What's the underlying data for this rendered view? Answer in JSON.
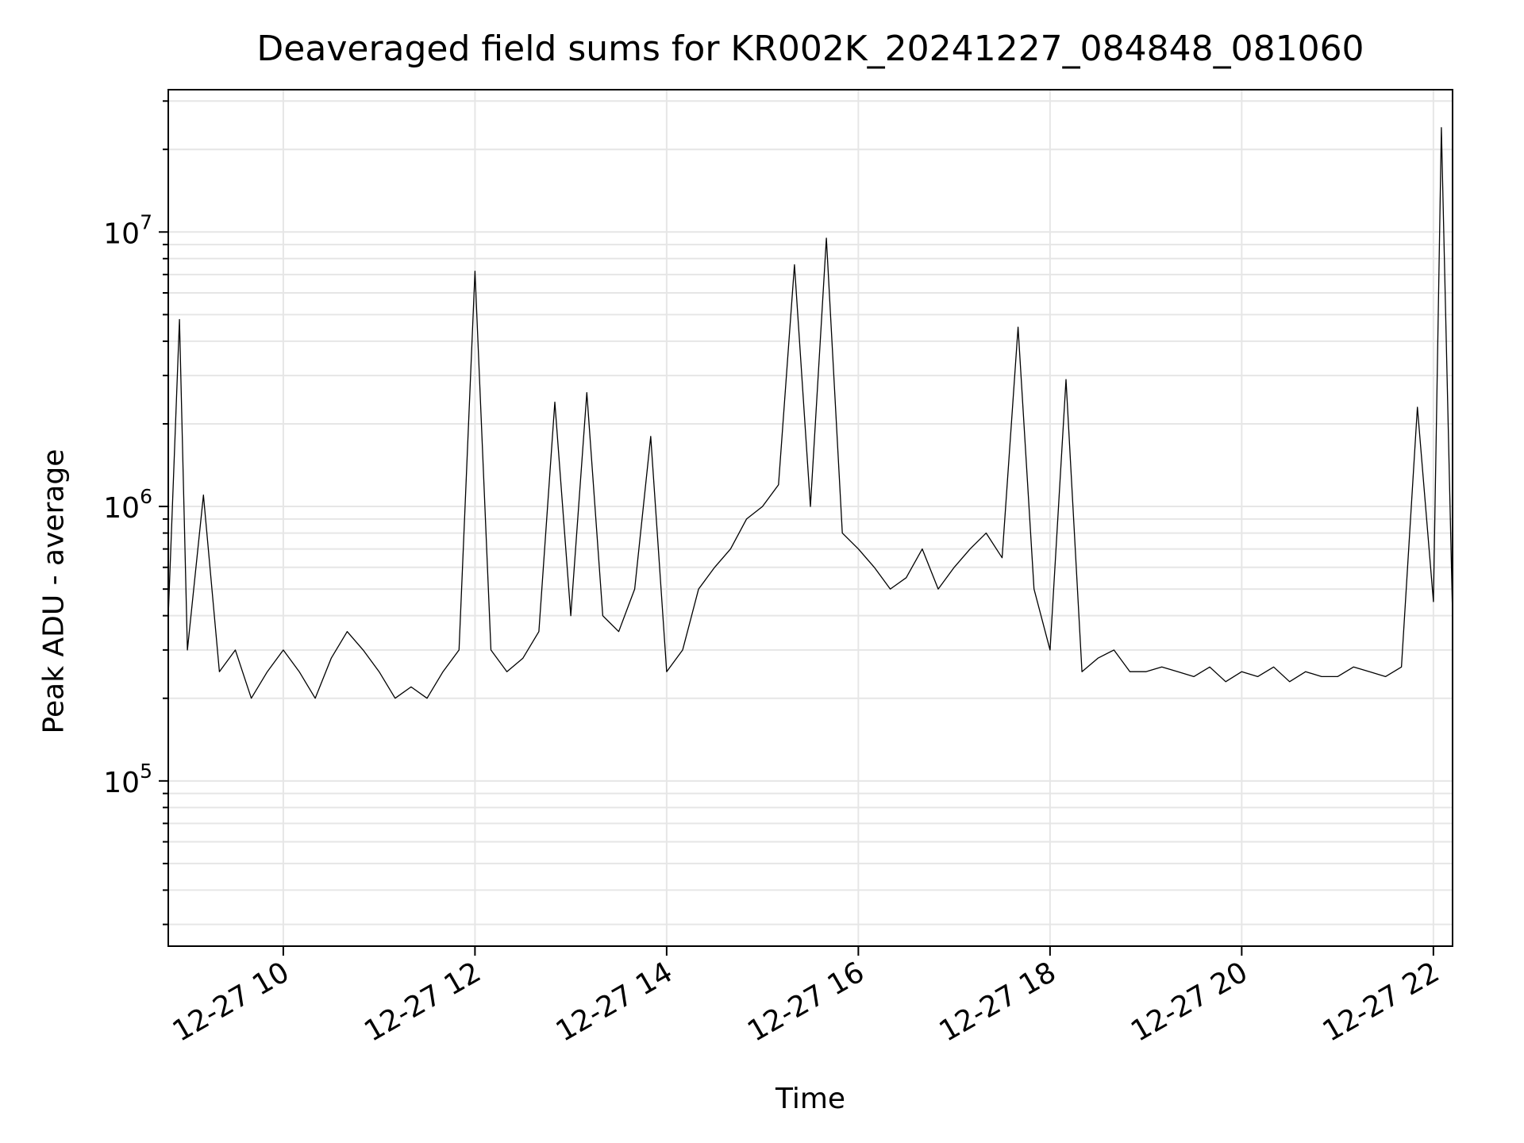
{
  "chart_data": {
    "type": "line",
    "title": "Deaveraged field sums for KR002K_20241227_084848_081060",
    "xlabel": "Time",
    "ylabel": "Peak ADU - average",
    "y_scale": "log",
    "ylim": [
      25000,
      33000000
    ],
    "xlim": [
      "2024-12-27 08:48",
      "2024-12-27 22:12"
    ],
    "x_ticks": [
      "2024-12-27 10:00",
      "2024-12-27 12:00",
      "2024-12-27 14:00",
      "2024-12-27 16:00",
      "2024-12-27 18:00",
      "2024-12-27 20:00",
      "2024-12-27 22:00"
    ],
    "x_tick_labels": [
      "12-27 10",
      "12-27 12",
      "12-27 14",
      "12-27 16",
      "12-27 18",
      "12-27 20",
      "12-27 22"
    ],
    "y_ticks": [
      100000,
      1000000,
      10000000
    ],
    "y_tick_labels": [
      {
        "base": "10",
        "exp": "5"
      },
      {
        "base": "10",
        "exp": "6"
      },
      {
        "base": "10",
        "exp": "7"
      }
    ],
    "grid": true,
    "line_color": "#000000",
    "series": [
      {
        "x": [
          "2024-12-27 08:48",
          "2024-12-27 08:55",
          "2024-12-27 09:00",
          "2024-12-27 09:10",
          "2024-12-27 09:20",
          "2024-12-27 09:30",
          "2024-12-27 09:40",
          "2024-12-27 09:50",
          "2024-12-27 10:00",
          "2024-12-27 10:10",
          "2024-12-27 10:20",
          "2024-12-27 10:30",
          "2024-12-27 10:40",
          "2024-12-27 10:50",
          "2024-12-27 11:00",
          "2024-12-27 11:10",
          "2024-12-27 11:20",
          "2024-12-27 11:30",
          "2024-12-27 11:40",
          "2024-12-27 11:50",
          "2024-12-27 12:00",
          "2024-12-27 12:10",
          "2024-12-27 12:20",
          "2024-12-27 12:30",
          "2024-12-27 12:40",
          "2024-12-27 12:50",
          "2024-12-27 13:00",
          "2024-12-27 13:10",
          "2024-12-27 13:20",
          "2024-12-27 13:30",
          "2024-12-27 13:40",
          "2024-12-27 13:50",
          "2024-12-27 14:00",
          "2024-12-27 14:10",
          "2024-12-27 14:20",
          "2024-12-27 14:30",
          "2024-12-27 14:40",
          "2024-12-27 14:50",
          "2024-12-27 15:00",
          "2024-12-27 15:10",
          "2024-12-27 15:20",
          "2024-12-27 15:30",
          "2024-12-27 15:40",
          "2024-12-27 15:50",
          "2024-12-27 16:00",
          "2024-12-27 16:10",
          "2024-12-27 16:20",
          "2024-12-27 16:30",
          "2024-12-27 16:40",
          "2024-12-27 16:50",
          "2024-12-27 17:00",
          "2024-12-27 17:10",
          "2024-12-27 17:20",
          "2024-12-27 17:30",
          "2024-12-27 17:40",
          "2024-12-27 17:50",
          "2024-12-27 18:00",
          "2024-12-27 18:10",
          "2024-12-27 18:20",
          "2024-12-27 18:30",
          "2024-12-27 18:40",
          "2024-12-27 18:50",
          "2024-12-27 19:00",
          "2024-12-27 19:10",
          "2024-12-27 19:20",
          "2024-12-27 19:30",
          "2024-12-27 19:40",
          "2024-12-27 19:50",
          "2024-12-27 20:00",
          "2024-12-27 20:10",
          "2024-12-27 20:20",
          "2024-12-27 20:30",
          "2024-12-27 20:40",
          "2024-12-27 20:50",
          "2024-12-27 21:00",
          "2024-12-27 21:10",
          "2024-12-27 21:20",
          "2024-12-27 21:30",
          "2024-12-27 21:40",
          "2024-12-27 21:50",
          "2024-12-27 22:00",
          "2024-12-27 22:05",
          "2024-12-27 22:12"
        ],
        "y": [
          400000,
          4800000,
          300000,
          1100000,
          250000,
          300000,
          200000,
          250000,
          300000,
          250000,
          200000,
          280000,
          350000,
          300000,
          250000,
          200000,
          220000,
          200000,
          250000,
          300000,
          7200000,
          300000,
          250000,
          280000,
          350000,
          2400000,
          400000,
          2600000,
          400000,
          350000,
          500000,
          1800000,
          250000,
          300000,
          500000,
          600000,
          700000,
          900000,
          1000000,
          1200000,
          7600000,
          1000000,
          9500000,
          800000,
          700000,
          600000,
          500000,
          550000,
          700000,
          500000,
          600000,
          700000,
          800000,
          650000,
          4500000,
          500000,
          300000,
          2900000,
          250000,
          280000,
          300000,
          250000,
          250000,
          260000,
          250000,
          240000,
          260000,
          230000,
          250000,
          240000,
          260000,
          230000,
          250000,
          240000,
          240000,
          260000,
          250000,
          240000,
          260000,
          2300000,
          450000,
          24000000,
          400000
        ]
      }
    ]
  }
}
